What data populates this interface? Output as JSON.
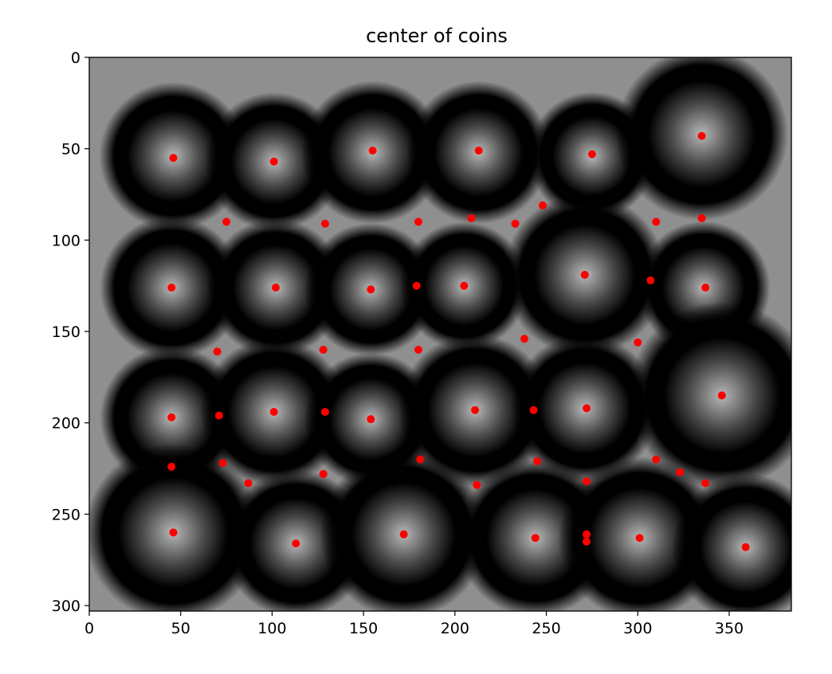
{
  "chart_data": {
    "type": "scatter",
    "title": "center of coins",
    "xlabel": "",
    "ylabel": "",
    "xlim": [
      0,
      384
    ],
    "ylim": [
      303,
      0
    ],
    "y_axis_inverted": true,
    "x_ticks": [
      0,
      50,
      100,
      150,
      200,
      250,
      300,
      350
    ],
    "y_ticks": [
      0,
      50,
      100,
      150,
      200,
      250,
      300
    ],
    "grid": false,
    "background": "grayscale distance-transform image of coins",
    "marker_color": "#ff0000",
    "coins": [
      {
        "x": 46,
        "y": 54,
        "r": 30
      },
      {
        "x": 101,
        "y": 57,
        "r": 28
      },
      {
        "x": 155,
        "y": 52,
        "r": 29
      },
      {
        "x": 213,
        "y": 52,
        "r": 29
      },
      {
        "x": 275,
        "y": 54,
        "r": 26
      },
      {
        "x": 335,
        "y": 42,
        "r": 35
      },
      {
        "x": 45,
        "y": 126,
        "r": 29
      },
      {
        "x": 102,
        "y": 126,
        "r": 28
      },
      {
        "x": 154,
        "y": 127,
        "r": 27
      },
      {
        "x": 205,
        "y": 125,
        "r": 26
      },
      {
        "x": 271,
        "y": 119,
        "r": 33
      },
      {
        "x": 336,
        "y": 126,
        "r": 27
      },
      {
        "x": 45,
        "y": 197,
        "r": 29
      },
      {
        "x": 101,
        "y": 194,
        "r": 30
      },
      {
        "x": 154,
        "y": 198,
        "r": 27
      },
      {
        "x": 211,
        "y": 193,
        "r": 31
      },
      {
        "x": 271,
        "y": 192,
        "r": 30
      },
      {
        "x": 346,
        "y": 185,
        "r": 38
      },
      {
        "x": 46,
        "y": 260,
        "r": 36
      },
      {
        "x": 113,
        "y": 266,
        "r": 30
      },
      {
        "x": 172,
        "y": 261,
        "r": 34
      },
      {
        "x": 244,
        "y": 263,
        "r": 32
      },
      {
        "x": 301,
        "y": 263,
        "r": 33
      },
      {
        "x": 359,
        "y": 268,
        "r": 30
      }
    ],
    "points": [
      {
        "x": 46,
        "y": 55
      },
      {
        "x": 101,
        "y": 57
      },
      {
        "x": 155,
        "y": 51
      },
      {
        "x": 213,
        "y": 51
      },
      {
        "x": 275,
        "y": 53
      },
      {
        "x": 335,
        "y": 43
      },
      {
        "x": 75,
        "y": 90
      },
      {
        "x": 129,
        "y": 91
      },
      {
        "x": 180,
        "y": 90
      },
      {
        "x": 209,
        "y": 88
      },
      {
        "x": 233,
        "y": 91
      },
      {
        "x": 248,
        "y": 81
      },
      {
        "x": 310,
        "y": 90
      },
      {
        "x": 335,
        "y": 88
      },
      {
        "x": 45,
        "y": 126
      },
      {
        "x": 102,
        "y": 126
      },
      {
        "x": 154,
        "y": 127
      },
      {
        "x": 179,
        "y": 125
      },
      {
        "x": 205,
        "y": 125
      },
      {
        "x": 271,
        "y": 119
      },
      {
        "x": 307,
        "y": 122
      },
      {
        "x": 337,
        "y": 126
      },
      {
        "x": 70,
        "y": 161
      },
      {
        "x": 128,
        "y": 160
      },
      {
        "x": 180,
        "y": 160
      },
      {
        "x": 238,
        "y": 154
      },
      {
        "x": 300,
        "y": 156
      },
      {
        "x": 45,
        "y": 197
      },
      {
        "x": 71,
        "y": 196
      },
      {
        "x": 101,
        "y": 194
      },
      {
        "x": 129,
        "y": 194
      },
      {
        "x": 154,
        "y": 198
      },
      {
        "x": 211,
        "y": 193
      },
      {
        "x": 243,
        "y": 193
      },
      {
        "x": 272,
        "y": 192
      },
      {
        "x": 346,
        "y": 185
      },
      {
        "x": 45,
        "y": 224
      },
      {
        "x": 73,
        "y": 222
      },
      {
        "x": 87,
        "y": 233
      },
      {
        "x": 128,
        "y": 228
      },
      {
        "x": 181,
        "y": 220
      },
      {
        "x": 212,
        "y": 234
      },
      {
        "x": 245,
        "y": 221
      },
      {
        "x": 272,
        "y": 232
      },
      {
        "x": 310,
        "y": 220
      },
      {
        "x": 323,
        "y": 227
      },
      {
        "x": 337,
        "y": 233
      },
      {
        "x": 46,
        "y": 260
      },
      {
        "x": 113,
        "y": 266
      },
      {
        "x": 172,
        "y": 261
      },
      {
        "x": 244,
        "y": 263
      },
      {
        "x": 272,
        "y": 261
      },
      {
        "x": 272,
        "y": 265
      },
      {
        "x": 301,
        "y": 263
      },
      {
        "x": 359,
        "y": 268
      }
    ]
  }
}
